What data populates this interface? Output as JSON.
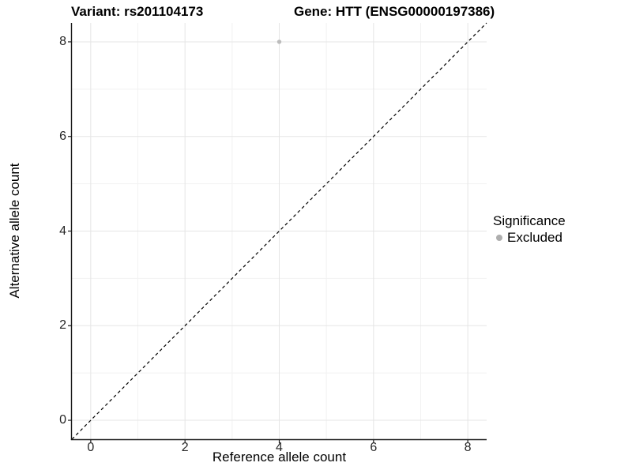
{
  "figure": {
    "title_left": "Variant: rs201104173",
    "title_right": "Gene: HTT (ENSG00000197386)"
  },
  "chart_data": {
    "type": "scatter",
    "title": "Variant: rs201104173   Gene: HTT (ENSG00000197386)",
    "xlabel": "Reference allele count",
    "ylabel": "Alternative allele count",
    "xlim": [
      -0.4,
      8.4
    ],
    "ylim": [
      -0.4,
      8.4
    ],
    "xticks": [
      0,
      2,
      4,
      6,
      8
    ],
    "yticks": [
      0,
      2,
      4,
      6,
      8
    ],
    "minor_gridlines_x": [
      1,
      3,
      5,
      7
    ],
    "minor_gridlines_y": [
      1,
      3,
      5,
      7
    ],
    "grid": "on",
    "series": [
      {
        "name": "Excluded",
        "points": [
          {
            "x": 4,
            "y": 8
          }
        ],
        "color": "#bcbcbc",
        "marker": "dot"
      }
    ],
    "reference_line": {
      "style": "dashed",
      "slope": 1,
      "intercept": 0,
      "color": "#000000"
    },
    "legend": {
      "title": "Significance",
      "position": "right",
      "entries": [
        {
          "label": "Excluded",
          "color": "#aeaeae",
          "marker": "dot"
        }
      ]
    },
    "style": {
      "major_grid_color": "#e5e5e5",
      "minor_grid_color": "#f2f2f2",
      "axis_line_color": "#1a1a1a",
      "panel_background": "#ffffff"
    }
  }
}
